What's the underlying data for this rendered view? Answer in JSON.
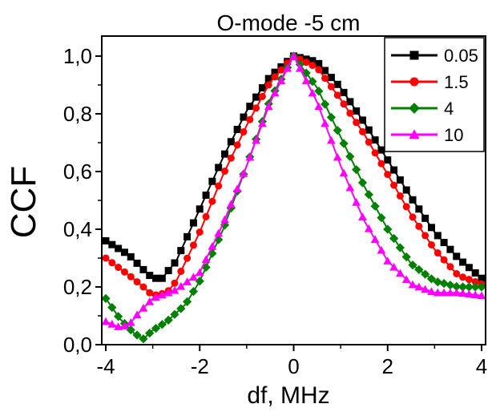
{
  "chart_data": {
    "type": "line",
    "title": "O-mode -5 cm",
    "xlabel": "df, MHz",
    "ylabel": "CCF",
    "xlim": [
      -4,
      4
    ],
    "ylim": [
      0,
      1.05
    ],
    "x_ticks": [
      "-4",
      "-2",
      "0",
      "2",
      "4"
    ],
    "y_ticks": [
      "0,0",
      "0,2",
      "0,4",
      "0,6",
      "0,8",
      "1,0"
    ],
    "grid": false,
    "legend_position": "top-right",
    "series": [
      {
        "name": "0.05",
        "color": "#000000",
        "marker": "square",
        "points": [
          [
            -4,
            0.36
          ],
          [
            -3.5,
            0.31
          ],
          [
            -3.2,
            0.26
          ],
          [
            -3,
            0.23
          ],
          [
            -2.8,
            0.23
          ],
          [
            -2.5,
            0.29
          ],
          [
            -2,
            0.47
          ],
          [
            -1.5,
            0.65
          ],
          [
            -1,
            0.81
          ],
          [
            -0.5,
            0.93
          ],
          [
            0,
            1.0
          ],
          [
            0.5,
            0.98
          ],
          [
            1,
            0.89
          ],
          [
            1.5,
            0.77
          ],
          [
            2,
            0.64
          ],
          [
            2.5,
            0.51
          ],
          [
            3,
            0.39
          ],
          [
            3.5,
            0.3
          ],
          [
            4,
            0.23
          ]
        ]
      },
      {
        "name": "1.5",
        "color": "#ff0000",
        "marker": "circle",
        "points": [
          [
            -4,
            0.3
          ],
          [
            -3.5,
            0.24
          ],
          [
            -3.2,
            0.2
          ],
          [
            -3,
            0.17
          ],
          [
            -2.7,
            0.18
          ],
          [
            -2.5,
            0.22
          ],
          [
            -2,
            0.39
          ],
          [
            -1.5,
            0.59
          ],
          [
            -1,
            0.76
          ],
          [
            -0.5,
            0.91
          ],
          [
            0,
            1.0
          ],
          [
            0.5,
            0.96
          ],
          [
            1,
            0.85
          ],
          [
            1.5,
            0.73
          ],
          [
            2,
            0.59
          ],
          [
            2.5,
            0.45
          ],
          [
            3,
            0.33
          ],
          [
            3.5,
            0.24
          ],
          [
            4,
            0.21
          ]
        ]
      },
      {
        "name": "4",
        "color": "#008000",
        "marker": "diamond",
        "points": [
          [
            -4,
            0.16
          ],
          [
            -3.7,
            0.09
          ],
          [
            -3.4,
            0.04
          ],
          [
            -3.2,
            0.02
          ],
          [
            -3,
            0.05
          ],
          [
            -2.7,
            0.08
          ],
          [
            -2.3,
            0.14
          ],
          [
            -2,
            0.22
          ],
          [
            -1.5,
            0.4
          ],
          [
            -1,
            0.62
          ],
          [
            -0.5,
            0.85
          ],
          [
            0,
            1.0
          ],
          [
            0.5,
            0.89
          ],
          [
            1,
            0.72
          ],
          [
            1.5,
            0.55
          ],
          [
            2,
            0.4
          ],
          [
            2.5,
            0.28
          ],
          [
            3,
            0.22
          ],
          [
            3.5,
            0.2
          ],
          [
            4,
            0.2
          ]
        ]
      },
      {
        "name": "10",
        "color": "#ff00ff",
        "marker": "triangle",
        "points": [
          [
            -4,
            0.08
          ],
          [
            -3.7,
            0.06
          ],
          [
            -3.5,
            0.07
          ],
          [
            -3.3,
            0.11
          ],
          [
            -3,
            0.16
          ],
          [
            -2.5,
            0.19
          ],
          [
            -2,
            0.25
          ],
          [
            -1.5,
            0.42
          ],
          [
            -1,
            0.62
          ],
          [
            -0.5,
            0.84
          ],
          [
            0,
            1.0
          ],
          [
            0.5,
            0.84
          ],
          [
            1,
            0.62
          ],
          [
            1.5,
            0.43
          ],
          [
            2,
            0.29
          ],
          [
            2.5,
            0.21
          ],
          [
            3,
            0.18
          ],
          [
            3.5,
            0.18
          ],
          [
            4,
            0.17
          ]
        ]
      }
    ]
  }
}
